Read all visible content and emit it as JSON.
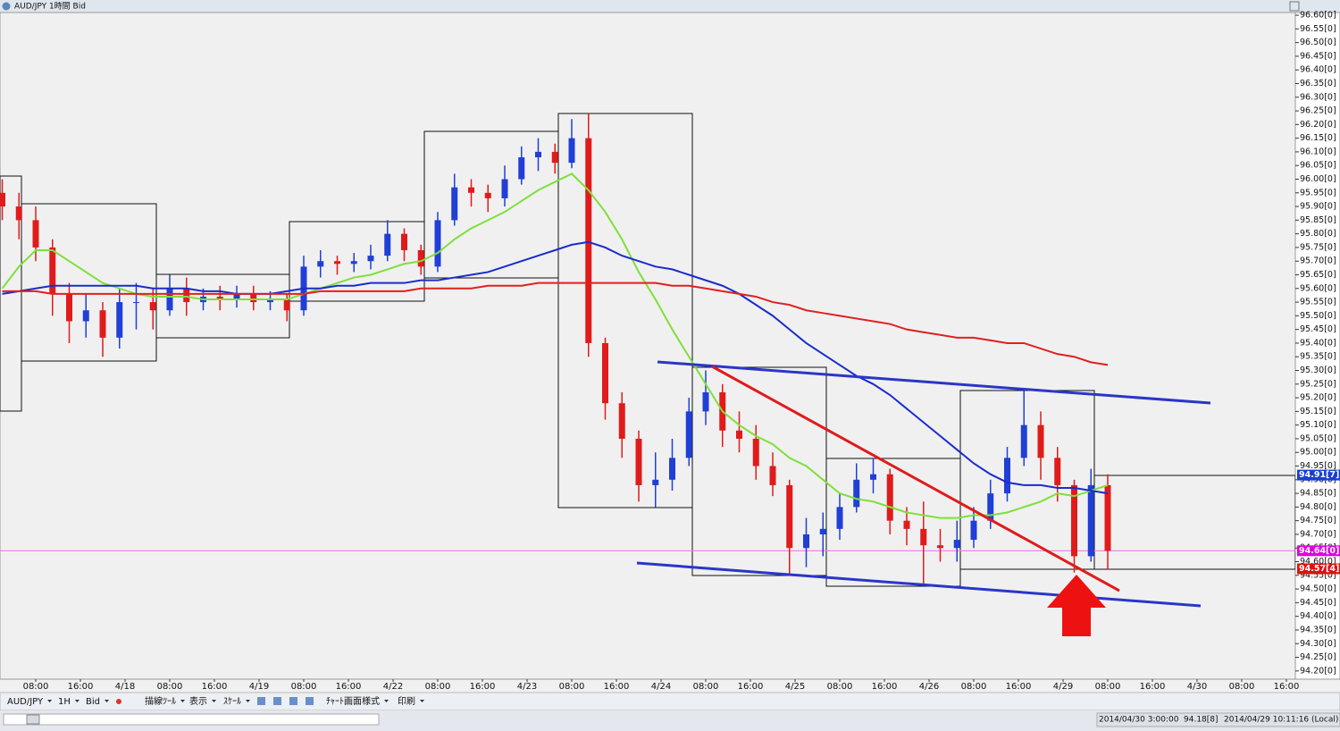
{
  "window": {
    "title": "AUD/JPY 1時間 Bid"
  },
  "toolbar": [
    "AUD/JPY",
    "1H",
    "Bid",
    "描線ﾂｰﾙ",
    "表示",
    "ｽｹｰﾙ",
    "ﾁｬｰﾄ画面様式",
    "印刷"
  ],
  "status": {
    "time": "2014/04/30 3:00:00",
    "price": "94.18[8]",
    "local": "2014/04/29 10:11:16 (Local)"
  },
  "chart_data": {
    "type": "candlestick",
    "x_labels": [
      "08:00",
      "16:00",
      "4/18",
      "08:00",
      "16:00",
      "4/19",
      "08:00",
      "16:00",
      "4/22",
      "08:00",
      "16:00",
      "4/23",
      "08:00",
      "16:00",
      "4/24",
      "08:00",
      "16:00",
      "4/25",
      "08:00",
      "16:00",
      "4/26",
      "08:00",
      "16:00",
      "4/29",
      "08:00",
      "16:00",
      "4/30",
      "08:00",
      "16:00"
    ],
    "up_color": "#1f3fd6",
    "down_color": "#e01b1b",
    "ohlc": [
      [
        95.95,
        96.0,
        95.85,
        95.9
      ],
      [
        95.9,
        95.95,
        95.78,
        95.85
      ],
      [
        95.85,
        95.9,
        95.7,
        95.75
      ],
      [
        95.75,
        95.78,
        95.5,
        95.58
      ],
      [
        95.58,
        95.62,
        95.4,
        95.48
      ],
      [
        95.48,
        95.58,
        95.42,
        95.52
      ],
      [
        95.52,
        95.55,
        95.35,
        95.42
      ],
      [
        95.42,
        95.6,
        95.38,
        95.55
      ],
      [
        95.55,
        95.62,
        95.45,
        95.55
      ],
      [
        95.55,
        95.6,
        95.45,
        95.52
      ],
      [
        95.52,
        95.65,
        95.5,
        95.6
      ],
      [
        95.6,
        95.64,
        95.5,
        95.55
      ],
      [
        95.55,
        95.6,
        95.52,
        95.57
      ],
      [
        95.57,
        95.61,
        95.52,
        95.56
      ],
      [
        95.56,
        95.61,
        95.53,
        95.58
      ],
      [
        95.58,
        95.61,
        95.52,
        95.55
      ],
      [
        95.55,
        95.59,
        95.52,
        95.56
      ],
      [
        95.56,
        95.58,
        95.48,
        95.52
      ],
      [
        95.52,
        95.72,
        95.5,
        95.68
      ],
      [
        95.68,
        95.74,
        95.64,
        95.7
      ],
      [
        95.7,
        95.72,
        95.65,
        95.69
      ],
      [
        95.69,
        95.73,
        95.66,
        95.7
      ],
      [
        95.7,
        95.76,
        95.67,
        95.72
      ],
      [
        95.72,
        95.85,
        95.7,
        95.8
      ],
      [
        95.8,
        95.82,
        95.7,
        95.74
      ],
      [
        95.74,
        95.76,
        95.65,
        95.68
      ],
      [
        95.68,
        95.88,
        95.66,
        95.85
      ],
      [
        95.85,
        96.02,
        95.83,
        95.97
      ],
      [
        95.97,
        96.0,
        95.9,
        95.95
      ],
      [
        95.95,
        95.98,
        95.88,
        95.93
      ],
      [
        95.93,
        96.05,
        95.9,
        96.0
      ],
      [
        96.0,
        96.12,
        95.98,
        96.08
      ],
      [
        96.08,
        96.15,
        96.03,
        96.1
      ],
      [
        96.1,
        96.13,
        96.02,
        96.06
      ],
      [
        96.06,
        96.22,
        96.04,
        96.15
      ],
      [
        96.15,
        96.24,
        95.35,
        95.4
      ],
      [
        95.4,
        95.42,
        95.12,
        95.18
      ],
      [
        95.18,
        95.22,
        94.98,
        95.05
      ],
      [
        95.05,
        95.08,
        94.82,
        94.88
      ],
      [
        94.88,
        95.0,
        94.8,
        94.9
      ],
      [
        94.9,
        95.05,
        94.86,
        94.98
      ],
      [
        94.98,
        95.2,
        94.95,
        95.15
      ],
      [
        95.15,
        95.3,
        95.1,
        95.22
      ],
      [
        95.22,
        95.25,
        95.02,
        95.08
      ],
      [
        95.08,
        95.15,
        95.0,
        95.05
      ],
      [
        95.05,
        95.1,
        94.9,
        94.95
      ],
      [
        94.95,
        95.0,
        94.84,
        94.88
      ],
      [
        94.88,
        94.9,
        94.55,
        94.65
      ],
      [
        94.65,
        94.76,
        94.58,
        94.7
      ],
      [
        94.7,
        94.78,
        94.62,
        94.72
      ],
      [
        94.72,
        94.85,
        94.68,
        94.8
      ],
      [
        94.8,
        94.96,
        94.78,
        94.9
      ],
      [
        94.9,
        94.98,
        94.85,
        94.92
      ],
      [
        94.92,
        94.94,
        94.7,
        94.75
      ],
      [
        94.75,
        94.8,
        94.66,
        94.72
      ],
      [
        94.72,
        94.82,
        94.52,
        94.66
      ],
      [
        94.66,
        94.72,
        94.6,
        94.65
      ],
      [
        94.65,
        94.75,
        94.6,
        94.68
      ],
      [
        94.68,
        94.8,
        94.65,
        94.75
      ],
      [
        94.75,
        94.9,
        94.72,
        94.85
      ],
      [
        94.85,
        95.02,
        94.82,
        94.98
      ],
      [
        94.98,
        95.23,
        94.95,
        95.1
      ],
      [
        95.1,
        95.15,
        94.9,
        94.98
      ],
      [
        94.98,
        95.02,
        94.82,
        94.88
      ],
      [
        94.88,
        94.9,
        94.56,
        94.62
      ],
      [
        94.62,
        94.94,
        94.6,
        94.88
      ],
      [
        94.88,
        94.92,
        94.57,
        94.64
      ]
    ],
    "series": [
      {
        "color": "#7ee03a",
        "values": [
          95.6,
          95.68,
          95.74,
          95.74,
          95.7,
          95.66,
          95.62,
          95.6,
          95.58,
          95.57,
          95.57,
          95.57,
          95.56,
          95.56,
          95.56,
          95.56,
          95.56,
          95.56,
          95.58,
          95.6,
          95.62,
          95.64,
          95.65,
          95.67,
          95.69,
          95.7,
          95.73,
          95.78,
          95.82,
          95.85,
          95.88,
          95.92,
          95.96,
          95.99,
          96.02,
          95.96,
          95.88,
          95.78,
          95.66,
          95.56,
          95.45,
          95.35,
          95.25,
          95.15,
          95.1,
          95.06,
          95.03,
          94.98,
          94.95,
          94.9,
          94.85,
          94.83,
          94.82,
          94.8,
          94.78,
          94.77,
          94.76,
          94.76,
          94.77,
          94.77,
          94.78,
          94.8,
          94.82,
          94.85,
          94.84,
          94.86,
          94.88
        ]
      },
      {
        "color": "#1a2ccc",
        "values": [
          95.58,
          95.59,
          95.6,
          95.61,
          95.61,
          95.61,
          95.61,
          95.61,
          95.61,
          95.6,
          95.6,
          95.6,
          95.59,
          95.59,
          95.58,
          95.58,
          95.58,
          95.59,
          95.6,
          95.6,
          95.61,
          95.61,
          95.62,
          95.62,
          95.62,
          95.63,
          95.63,
          95.64,
          95.65,
          95.66,
          95.68,
          95.7,
          95.72,
          95.74,
          95.76,
          95.77,
          95.75,
          95.72,
          95.7,
          95.68,
          95.67,
          95.65,
          95.63,
          95.61,
          95.58,
          95.54,
          95.5,
          95.45,
          95.4,
          95.36,
          95.32,
          95.28,
          95.25,
          95.21,
          95.16,
          95.11,
          95.06,
          95.01,
          94.96,
          94.92,
          94.89,
          94.88,
          94.88,
          94.87,
          94.87,
          94.86,
          94.85
        ]
      },
      {
        "color": "#e02020",
        "values": [
          95.59,
          95.59,
          95.59,
          95.58,
          95.58,
          95.58,
          95.58,
          95.58,
          95.58,
          95.58,
          95.58,
          95.58,
          95.58,
          95.58,
          95.58,
          95.58,
          95.58,
          95.58,
          95.58,
          95.59,
          95.59,
          95.59,
          95.59,
          95.59,
          95.59,
          95.6,
          95.6,
          95.6,
          95.6,
          95.61,
          95.61,
          95.61,
          95.62,
          95.62,
          95.62,
          95.62,
          95.62,
          95.62,
          95.62,
          95.62,
          95.61,
          95.61,
          95.6,
          95.59,
          95.58,
          95.57,
          95.55,
          95.54,
          95.52,
          95.51,
          95.5,
          95.49,
          95.48,
          95.47,
          95.45,
          95.44,
          95.43,
          95.42,
          95.42,
          95.41,
          95.4,
          95.4,
          95.38,
          95.36,
          95.35,
          95.33,
          95.32
        ]
      }
    ],
    "hline": {
      "value": 94.64,
      "color": "#e87de8"
    },
    "price_tags": [
      {
        "value": 94.917,
        "label": "94.91[7]",
        "color": "#1a3fd0"
      },
      {
        "value": 94.64,
        "label": "94.64[0]",
        "color": "#e000e0"
      },
      {
        "value": 94.574,
        "label": "94.57[4]",
        "color": "#e01010"
      }
    ],
    "ylim": [
      94.17,
      96.61
    ],
    "yticks": [
      {
        "value": 94.2,
        "label": "94.20[0]"
      },
      {
        "value": 94.25,
        "label": "94.25[0]"
      },
      {
        "value": 94.3,
        "label": "94.30[0]"
      },
      {
        "value": 94.35,
        "label": "94.35[0]"
      },
      {
        "value": 94.4,
        "label": "94.40[0]"
      },
      {
        "value": 94.45,
        "label": "94.45[0]"
      },
      {
        "value": 94.5,
        "label": "94.50[0]"
      },
      {
        "value": 94.55,
        "label": "94.55[0]"
      },
      {
        "value": 94.6,
        "label": "94.60[0]"
      },
      {
        "value": 94.65,
        "label": "94.65[0]"
      },
      {
        "value": 94.7,
        "label": "94.70[0]"
      },
      {
        "value": 94.75,
        "label": "94.75[0]"
      },
      {
        "value": 94.8,
        "label": "94.80[0]"
      },
      {
        "value": 94.85,
        "label": "94.85[0]"
      },
      {
        "value": 94.9,
        "label": "94.90[0]"
      },
      {
        "value": 94.95,
        "label": "94.95[0]"
      },
      {
        "value": 95.0,
        "label": "95.00[0]"
      },
      {
        "value": 95.05,
        "label": "95.05[0]"
      },
      {
        "value": 95.1,
        "label": "95.10[0]"
      },
      {
        "value": 95.15,
        "label": "95.15[0]"
      },
      {
        "value": 95.2,
        "label": "95.20[0]"
      },
      {
        "value": 95.25,
        "label": "95.25[0]"
      },
      {
        "value": 95.3,
        "label": "95.30[0]"
      },
      {
        "value": 95.35,
        "label": "95.35[0]"
      },
      {
        "value": 95.4,
        "label": "95.40[0]"
      },
      {
        "value": 95.45,
        "label": "95.45[0]"
      },
      {
        "value": 95.5,
        "label": "95.50[0]"
      },
      {
        "value": 95.55,
        "label": "95.55[0]"
      },
      {
        "value": 95.6,
        "label": "95.60[0]"
      },
      {
        "value": 95.65,
        "label": "95.65[0]"
      },
      {
        "value": 95.7,
        "label": "95.70[0]"
      },
      {
        "value": 95.75,
        "label": "95.75[0]"
      },
      {
        "value": 95.8,
        "label": "95.80[0]"
      },
      {
        "value": 95.85,
        "label": "95.85[0]"
      },
      {
        "value": 95.9,
        "label": "95.90[0]"
      },
      {
        "value": 95.95,
        "label": "95.95[0]"
      },
      {
        "value": 96.0,
        "label": "96.00[0]"
      },
      {
        "value": 96.05,
        "label": "96.05[0]"
      },
      {
        "value": 96.1,
        "label": "96.10[0]"
      },
      {
        "value": 96.15,
        "label": "96.15[0]"
      },
      {
        "value": 96.2,
        "label": "96.20[0]"
      },
      {
        "value": 96.25,
        "label": "96.25[0]"
      },
      {
        "value": 96.3,
        "label": "96.30[0]"
      },
      {
        "value": 96.35,
        "label": "96.35[0]"
      },
      {
        "value": 96.4,
        "label": "96.40[0]"
      },
      {
        "value": 96.45,
        "label": "96.45[0]"
      },
      {
        "value": 96.5,
        "label": "96.50[0]"
      },
      {
        "value": 96.55,
        "label": "96.55[0]"
      },
      {
        "value": 96.6,
        "label": "96.60[0]"
      }
    ]
  }
}
